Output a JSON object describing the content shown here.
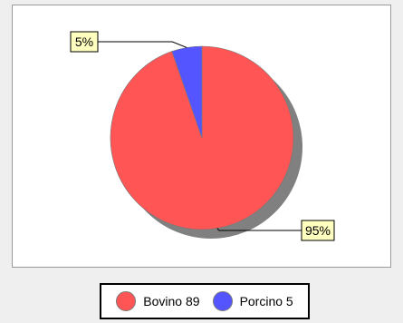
{
  "chart_data": {
    "type": "pie",
    "slices": [
      {
        "label": "Bovino",
        "value": 89,
        "percent_label": "95%",
        "color": "#ff5555"
      },
      {
        "label": "Porcino",
        "value": 5,
        "percent_label": "5%",
        "color": "#5555ff"
      }
    ],
    "legend": [
      {
        "text": "Bovino 89",
        "color": "#ff5555"
      },
      {
        "text": "Porcino 5",
        "color": "#5555ff"
      }
    ],
    "legend_position": "bottom",
    "data_label_style": "callout boxes",
    "shadow": true
  },
  "colors": {
    "background": "#efefef",
    "panel": "#ffffff",
    "shadow": "#808080",
    "label_box": "#ffffc0"
  }
}
